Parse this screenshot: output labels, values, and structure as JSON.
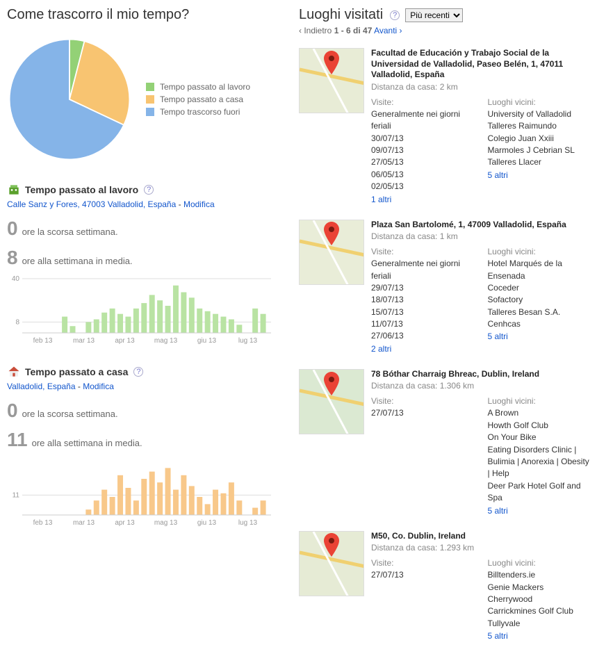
{
  "left": {
    "title": "Come trascorro il mio tempo?",
    "pie": {
      "slices": [
        {
          "label": "Tempo passato al lavoro",
          "pct": 4,
          "color": "#93d176"
        },
        {
          "label": "Tempo passato a casa",
          "pct": 28,
          "color": "#f8c471"
        },
        {
          "label": "Tempo trascorso fuori",
          "pct": 68,
          "color": "#85b4e8"
        }
      ]
    },
    "work": {
      "icon_color": "#5aa02c",
      "title": "Tempo passato al lavoro",
      "addr": "Calle Sanz y Fores, 47003 Valladolid, España",
      "edit": "Modifica",
      "stat1_num": "0",
      "stat1_txt": "ore la scorsa settimana.",
      "stat2_num": "8",
      "stat2_txt": "ore alla settimana in media.",
      "chart": {
        "y_max": 40,
        "y_ticks": [
          8,
          40
        ],
        "color": "#b9e3a3",
        "x_labels": [
          "feb 13",
          "mar 13",
          "apr 13",
          "mag 13",
          "giu 13",
          "lug 13"
        ],
        "values": [
          0,
          0,
          0,
          0,
          0,
          12,
          5,
          0,
          8,
          10,
          15,
          18,
          14,
          12,
          18,
          22,
          28,
          24,
          20,
          35,
          30,
          26,
          18,
          16,
          14,
          12,
          10,
          6,
          0,
          18,
          14
        ]
      }
    },
    "home": {
      "icon_color": "#c94d3a",
      "title": "Tempo passato a casa",
      "addr": "Valladolid, España",
      "edit": "Modifica",
      "stat1_num": "0",
      "stat1_txt": "ore la scorsa settimana.",
      "stat2_num": "11",
      "stat2_txt": "ore alla settimana in media.",
      "chart": {
        "y_max": 30,
        "y_ticks": [
          11
        ],
        "color": "#f8c88a",
        "x_labels": [
          "feb 13",
          "mar 13",
          "apr 13",
          "mag 13",
          "giu 13",
          "lug 13"
        ],
        "values": [
          0,
          0,
          0,
          0,
          0,
          0,
          0,
          0,
          3,
          8,
          14,
          10,
          22,
          15,
          8,
          20,
          24,
          18,
          26,
          14,
          22,
          16,
          10,
          6,
          14,
          12,
          18,
          8,
          0,
          4,
          8
        ]
      }
    }
  },
  "right": {
    "title": "Luoghi visitati",
    "sort_options": [
      "Più recenti"
    ],
    "sort_selected": "Più recenti",
    "pager": {
      "back": "‹ Indietro",
      "range": "1 - 6 di 47",
      "fwd": "Avanti ›"
    },
    "visit_lbl": "Visite:",
    "near_lbl": "Luoghi vicini:",
    "places": [
      {
        "title": "Facultad de Educación y Trabajo Social de la Universidad de Valladolid, Paseo Belén, 1, 47011 Valladolid, España",
        "dist": "Distanza da casa: 2 km",
        "visits_note": "Generalmente nei giorni feriali",
        "visits": [
          "30/07/13",
          "09/07/13",
          "27/05/13",
          "06/05/13",
          "02/05/13"
        ],
        "visits_more": "1 altri",
        "near": [
          "University of Valladolid",
          "Talleres Raimundo",
          "Colegio Juan Xxiii",
          "Marmoles J Cebrian SL",
          "Talleres Llacer"
        ],
        "near_more": "5 altri",
        "map_bg": "#e8ecd6"
      },
      {
        "title": "Plaza San Bartolomé, 1, 47009 Valladolid, España",
        "dist": "Distanza da casa: 1 km",
        "visits_note": "Generalmente nei giorni feriali",
        "visits": [
          "29/07/13",
          "18/07/13",
          "15/07/13",
          "11/07/13",
          "27/06/13"
        ],
        "visits_more": "2 altri",
        "near": [
          "Hotel Marqués de la Ensenada",
          "Coceder",
          "Sofactory",
          "Talleres Besan S.A.",
          "Cenhcas"
        ],
        "near_more": "5 altri",
        "map_bg": "#e9edd8"
      },
      {
        "title": "78 Bóthar Charraig Bhreac, Dublin, Ireland",
        "dist": "Distanza da casa: 1.306 km",
        "visits_note": "",
        "visits": [
          "27/07/13"
        ],
        "visits_more": "",
        "near": [
          "A Brown",
          "Howth Golf Club",
          "On Your Bike",
          "Eating Disorders Clinic | Bulimia | Anorexia | Obesity | Help",
          "Deer Park Hotel Golf and Spa"
        ],
        "near_more": "5 altri",
        "map_bg": "#dbe9d2"
      },
      {
        "title": "M50, Co. Dublin, Ireland",
        "dist": "Distanza da casa: 1.293 km",
        "visits_note": "",
        "visits": [
          "27/07/13"
        ],
        "visits_more": "",
        "near": [
          "Billtenders.ie",
          "Genie Mackers",
          "Cherrywood",
          "Carrickmines Golf Club",
          "Tullyvale"
        ],
        "near_more": "5 altri",
        "map_bg": "#e6ebd5"
      }
    ]
  }
}
